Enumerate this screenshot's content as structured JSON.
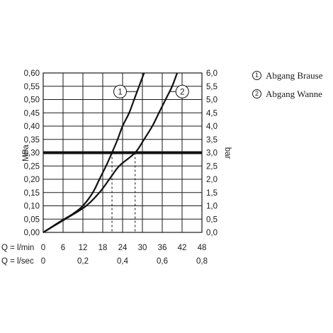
{
  "chart_data": {
    "type": "line",
    "left_axis": {
      "label": "MPa",
      "ylim": [
        0,
        0.6
      ],
      "ticks": [
        "0,00",
        "0,05",
        "0,10",
        "0,15",
        "0,20",
        "0,25",
        "0,30",
        "0,35",
        "0,40",
        "0,45",
        "0,50",
        "0,55",
        "0,60"
      ]
    },
    "right_axis": {
      "label": "bar",
      "ylim": [
        0,
        6
      ],
      "ticks": [
        "0,0",
        "0,5",
        "1,0",
        "1,5",
        "2,0",
        "2,5",
        "3,0",
        "3,5",
        "4,0",
        "4,5",
        "5,0",
        "5,5",
        "6,0"
      ]
    },
    "x_axis_lmin": {
      "label": "Q = l/min",
      "xlim": [
        0,
        48
      ],
      "ticks": [
        {
          "v": 0,
          "t": "0"
        },
        {
          "v": 6,
          "t": "6"
        },
        {
          "v": 12,
          "t": "12"
        },
        {
          "v": 18,
          "t": "18"
        },
        {
          "v": 24,
          "t": "24"
        },
        {
          "v": 30,
          "t": "30"
        },
        {
          "v": 36,
          "t": "36"
        },
        {
          "v": 42,
          "t": "42"
        },
        {
          "v": 48,
          "t": "48"
        }
      ]
    },
    "x_axis_lsec": {
      "label": "Q = l/sec",
      "ticks": [
        {
          "v": 0,
          "t": "0"
        },
        {
          "v": 12,
          "t": "0,2"
        },
        {
          "v": 24,
          "t": "0,4"
        },
        {
          "v": 36,
          "t": "0,6"
        },
        {
          "v": 48,
          "t": "0,8"
        }
      ]
    },
    "grid": true,
    "reference_line": {
      "y": 0.3
    },
    "series": [
      {
        "name": "Abgang Brause",
        "marker": "1",
        "points": [
          [
            0,
            0
          ],
          [
            5,
            0.04
          ],
          [
            9,
            0.07
          ],
          [
            12,
            0.1
          ],
          [
            15,
            0.15
          ],
          [
            17,
            0.2
          ],
          [
            19,
            0.25
          ],
          [
            20.8,
            0.3
          ],
          [
            22.5,
            0.35
          ],
          [
            24,
            0.4
          ],
          [
            26,
            0.45
          ],
          [
            27.5,
            0.5
          ],
          [
            29,
            0.55
          ],
          [
            30.5,
            0.6
          ]
        ]
      },
      {
        "name": "Abgang Wanne",
        "marker": "2",
        "points": [
          [
            0,
            0
          ],
          [
            8,
            0.06
          ],
          [
            13,
            0.1
          ],
          [
            17,
            0.15
          ],
          [
            20,
            0.2
          ],
          [
            23,
            0.25
          ],
          [
            27.8,
            0.3
          ],
          [
            30.5,
            0.35
          ],
          [
            33,
            0.4
          ],
          [
            35,
            0.45
          ],
          [
            37,
            0.5
          ],
          [
            39,
            0.55
          ],
          [
            40.5,
            0.6
          ]
        ]
      }
    ]
  }
}
